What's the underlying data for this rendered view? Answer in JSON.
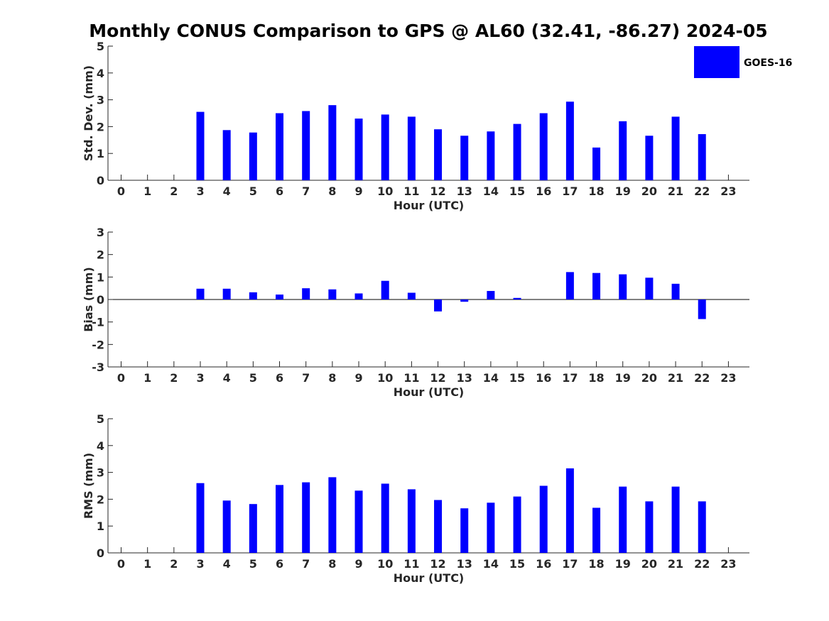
{
  "title": "Monthly CONUS Comparison to GPS @ AL60 (32.41, -86.27) 2024-05",
  "bar_color": "#0000ff",
  "legend": {
    "label": "GOES-16",
    "placement": "top-right"
  },
  "chart_data": [
    {
      "type": "bar",
      "xlabel": "Hour (UTC)",
      "ylabel": "Std. Dev. (mm)",
      "ylim": [
        0,
        5
      ],
      "yticks": [
        0,
        1,
        2,
        3,
        4,
        5
      ],
      "categories": [
        0,
        1,
        2,
        3,
        4,
        5,
        6,
        7,
        8,
        9,
        10,
        11,
        12,
        13,
        14,
        15,
        16,
        17,
        18,
        19,
        20,
        21,
        22,
        23
      ],
      "series": [
        {
          "name": "GOES-16",
          "values": [
            null,
            null,
            null,
            2.55,
            1.87,
            1.78,
            2.5,
            2.58,
            2.8,
            2.3,
            2.45,
            2.37,
            1.9,
            1.66,
            1.82,
            2.1,
            2.5,
            2.93,
            1.22,
            2.2,
            1.66,
            2.37,
            1.72,
            null
          ]
        }
      ]
    },
    {
      "type": "bar",
      "xlabel": "Hour (UTC)",
      "ylabel": "Bias (mm)",
      "ylim": [
        -3,
        3
      ],
      "yticks": [
        -3,
        -2,
        -1,
        0,
        1,
        2,
        3
      ],
      "categories": [
        0,
        1,
        2,
        3,
        4,
        5,
        6,
        7,
        8,
        9,
        10,
        11,
        12,
        13,
        14,
        15,
        16,
        17,
        18,
        19,
        20,
        21,
        22,
        23
      ],
      "series": [
        {
          "values": [
            null,
            null,
            null,
            0.48,
            0.48,
            0.32,
            0.22,
            0.5,
            0.45,
            0.27,
            0.83,
            0.3,
            -0.53,
            -0.1,
            0.38,
            0.07,
            null,
            1.22,
            1.18,
            1.12,
            0.97,
            0.7,
            -0.87,
            null
          ]
        }
      ]
    },
    {
      "type": "bar",
      "xlabel": "Hour (UTC)",
      "ylabel": "RMS (mm)",
      "ylim": [
        0,
        5
      ],
      "yticks": [
        0,
        1,
        2,
        3,
        4,
        5
      ],
      "categories": [
        0,
        1,
        2,
        3,
        4,
        5,
        6,
        7,
        8,
        9,
        10,
        11,
        12,
        13,
        14,
        15,
        16,
        17,
        18,
        19,
        20,
        21,
        22,
        23
      ],
      "series": [
        {
          "values": [
            null,
            null,
            null,
            2.6,
            1.95,
            1.82,
            2.53,
            2.63,
            2.82,
            2.32,
            2.58,
            2.37,
            1.97,
            1.66,
            1.87,
            2.1,
            2.5,
            3.15,
            1.68,
            2.47,
            1.92,
            2.47,
            1.92,
            null
          ]
        }
      ]
    }
  ]
}
